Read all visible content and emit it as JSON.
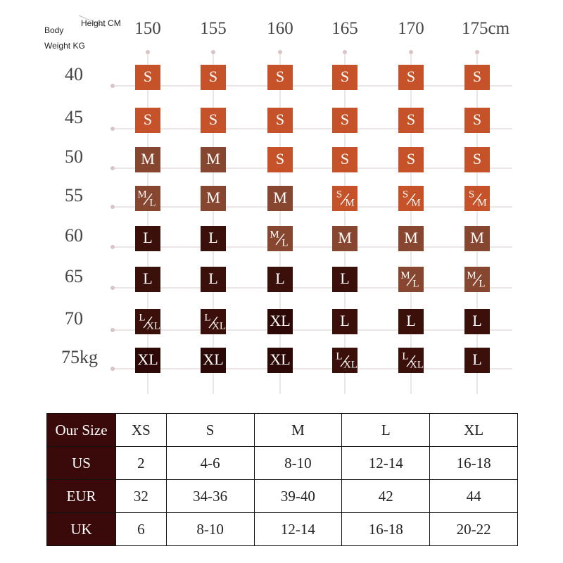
{
  "header": {
    "body": "Body",
    "height": "Height CM",
    "weight": "Weight  KG"
  },
  "heights": [
    "150",
    "155",
    "160",
    "165",
    "170",
    "175cm"
  ],
  "weights": [
    "40",
    "45",
    "50",
    "55",
    "60",
    "65",
    "70",
    "75kg"
  ],
  "cell_colors": {
    "S": "#c6522a",
    "M": "#87462f",
    "L": "#3b0f0a",
    "XL": "#2c0906"
  },
  "grid": {
    "rows": [
      [
        "S",
        "S",
        "S",
        "S",
        "S",
        "S"
      ],
      [
        "S",
        "S",
        "S",
        "S",
        "S",
        "S"
      ],
      [
        "M",
        "M",
        "S",
        "S",
        "S",
        "S"
      ],
      [
        [
          "M",
          "L"
        ],
        "M",
        "M",
        [
          "S",
          "M"
        ],
        [
          "S",
          "M"
        ],
        [
          "S",
          "M"
        ]
      ],
      [
        "L",
        "L",
        [
          "M",
          "L"
        ],
        "M",
        "M",
        "M"
      ],
      [
        "L",
        "L",
        "L",
        "L",
        [
          "M",
          "L"
        ],
        [
          "M",
          "L"
        ]
      ],
      [
        [
          "L",
          "XL"
        ],
        [
          "L",
          "XL"
        ],
        "XL",
        "L",
        "L",
        "L"
      ],
      [
        "XL",
        "XL",
        "XL",
        [
          "L",
          "XL"
        ],
        [
          "L",
          "XL"
        ],
        "L"
      ]
    ]
  },
  "table": {
    "header": [
      "Our Size",
      "XS",
      "S",
      "M",
      "L",
      "XL"
    ],
    "rows": [
      [
        "US",
        "2",
        "4-6",
        "8-10",
        "12-14",
        "16-18"
      ],
      [
        "EUR",
        "32",
        "34-36",
        "39-40",
        "42",
        "44"
      ],
      [
        "UK",
        "6",
        "8-10",
        "12-14",
        "16-18",
        "20-22"
      ]
    ]
  }
}
